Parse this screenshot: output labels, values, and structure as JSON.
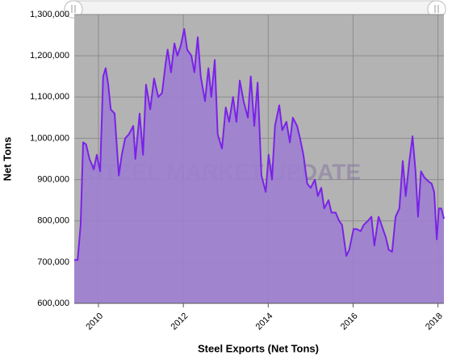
{
  "chart_data": {
    "type": "area",
    "x_title": "Steel Exports (Net Tons)",
    "y_title": "Net Tons",
    "watermark": "STEEL MARKET UPDATE",
    "line_color": "#7a22e8",
    "fill_color": "#9d7fd0",
    "plot_background": "#b3b3b3",
    "grid": true,
    "xlim": [
      2009.43,
      2018.14
    ],
    "xticks": [
      2010,
      2012,
      2014,
      2016,
      2018
    ],
    "ylim": [
      600000,
      1300000
    ],
    "yticks": [
      {
        "value": 600000,
        "label": "600,000"
      },
      {
        "value": 700000,
        "label": "700,000"
      },
      {
        "value": 800000,
        "label": "800,000"
      },
      {
        "value": 900000,
        "label": "900,000"
      },
      {
        "value": 1000000,
        "label": "1,000,000"
      },
      {
        "value": 1100000,
        "label": "1,100,000"
      },
      {
        "value": 1200000,
        "label": "1,200,000"
      },
      {
        "value": 1300000,
        "label": "1,300,000"
      }
    ],
    "x": [
      2009.43,
      2009.51,
      2009.58,
      2009.64,
      2009.71,
      2009.79,
      2009.89,
      2009.96,
      2010.04,
      2010.11,
      2010.17,
      2010.23,
      2010.29,
      2010.38,
      2010.48,
      2010.55,
      2010.63,
      2010.72,
      2010.82,
      2010.87,
      2010.97,
      2011.05,
      2011.12,
      2011.22,
      2011.31,
      2011.41,
      2011.5,
      2011.58,
      2011.63,
      2011.71,
      2011.79,
      2011.86,
      2011.94,
      2012.02,
      2012.09,
      2012.19,
      2012.26,
      2012.34,
      2012.41,
      2012.51,
      2012.59,
      2012.66,
      2012.74,
      2012.81,
      2012.91,
      2013.0,
      2013.08,
      2013.17,
      2013.25,
      2013.33,
      2013.42,
      2013.52,
      2013.59,
      2013.67,
      2013.75,
      2013.84,
      2013.94,
      2014.01,
      2014.09,
      2014.16,
      2014.26,
      2014.33,
      2014.43,
      2014.51,
      2014.58,
      2014.68,
      2014.75,
      2014.83,
      2014.92,
      2015.0,
      2015.1,
      2015.17,
      2015.25,
      2015.32,
      2015.42,
      2015.49,
      2015.59,
      2015.67,
      2015.74,
      2015.84,
      2015.91,
      2016.01,
      2016.08,
      2016.18,
      2016.25,
      2016.35,
      2016.43,
      2016.5,
      2016.6,
      2016.67,
      2016.77,
      2016.84,
      2016.92,
      2017.0,
      2017.09,
      2017.17,
      2017.24,
      2017.32,
      2017.4,
      2017.47,
      2017.53,
      2017.6,
      2017.68,
      2017.78,
      2017.85,
      2017.91,
      2017.97,
      2018.02,
      2018.08,
      2018.14
    ],
    "values": [
      705000,
      705000,
      790000,
      990000,
      985000,
      950000,
      925000,
      960000,
      920000,
      1150000,
      1170000,
      1130000,
      1070000,
      1060000,
      910000,
      960000,
      1000000,
      1010000,
      1030000,
      950000,
      1060000,
      960000,
      1130000,
      1070000,
      1145000,
      1100000,
      1110000,
      1180000,
      1215000,
      1160000,
      1230000,
      1200000,
      1225000,
      1265000,
      1215000,
      1200000,
      1160000,
      1245000,
      1150000,
      1090000,
      1170000,
      1100000,
      1190000,
      1010000,
      975000,
      1075000,
      1040000,
      1100000,
      1040000,
      1140000,
      1090000,
      1050000,
      1150000,
      1030000,
      1135000,
      910000,
      870000,
      960000,
      900000,
      1030000,
      1080000,
      1020000,
      1040000,
      990000,
      1050000,
      1030000,
      1000000,
      960000,
      890000,
      880000,
      900000,
      860000,
      880000,
      830000,
      850000,
      820000,
      820000,
      800000,
      790000,
      715000,
      730000,
      780000,
      780000,
      775000,
      790000,
      800000,
      810000,
      740000,
      810000,
      790000,
      760000,
      730000,
      725000,
      810000,
      830000,
      945000,
      860000,
      940000,
      1005000,
      920000,
      810000,
      920000,
      905000,
      895000,
      890000,
      870000,
      755000,
      830000,
      830000,
      805000
    ]
  }
}
